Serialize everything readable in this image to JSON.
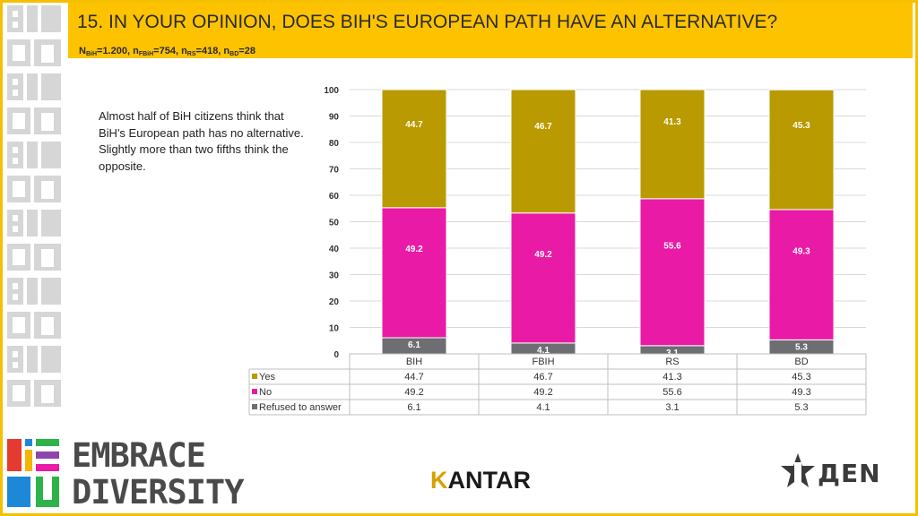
{
  "header": {
    "title": "15. IN YOUR OPINION, DOES BIH'S EUROPEAN PATH HAVE AN ALTERNATIVE?",
    "sample": {
      "n_bih_label": "N",
      "n_bih_sub": "BiH",
      "n_bih_val": "=1.200, ",
      "n_fbih_label": "n",
      "n_fbih_sub": "FBiH",
      "n_fbih_val": "=754, ",
      "n_rs_label": "n",
      "n_rs_sub": "RS",
      "n_rs_val": "=418, ",
      "n_bd_label": "n",
      "n_bd_sub": "BD",
      "n_bd_val": "=28"
    }
  },
  "note": "Almost  half of BiH citizens think that BiH's European path has no alternative. Slightly more than two fifths think the opposite.",
  "chart_data": {
    "type": "bar",
    "stacked": true,
    "categories": [
      "BIH",
      "FBIH",
      "RS",
      "BD"
    ],
    "series": [
      {
        "name": "Refused to answer",
        "color": "#6d6e71",
        "values": [
          6.1,
          4.1,
          3.1,
          5.3
        ],
        "labels": [
          "6.1",
          "4.1",
          "3.1",
          "5.3"
        ]
      },
      {
        "name": "No",
        "color": "#e91aa6",
        "values": [
          49.2,
          49.2,
          55.6,
          49.3
        ],
        "labels": [
          "49.2",
          "49.2",
          "55.6",
          "49.3"
        ]
      },
      {
        "name": "Yes",
        "color": "#b99a00",
        "values": [
          44.7,
          46.7,
          41.3,
          45.3
        ],
        "labels": [
          "44.7",
          "46.7",
          "41.3",
          "45.3"
        ]
      }
    ],
    "table_order": [
      "Yes",
      "No",
      "Refused to answer"
    ],
    "ylim": [
      0,
      100
    ],
    "yticks": [
      "0",
      "10",
      "20",
      "30",
      "40",
      "50",
      "60",
      "70",
      "80",
      "90",
      "100"
    ]
  },
  "logos": {
    "embrace_line1": "EMBRACE",
    "embrace_line2": "DIVERSITY",
    "kantar_k": "K",
    "kantar_rest": "ANTAR",
    "den": "ДЕN"
  },
  "colors": {
    "accent": "#fdc300",
    "yes": "#b99a00",
    "no": "#e91aa6",
    "refused": "#6d6e71"
  }
}
